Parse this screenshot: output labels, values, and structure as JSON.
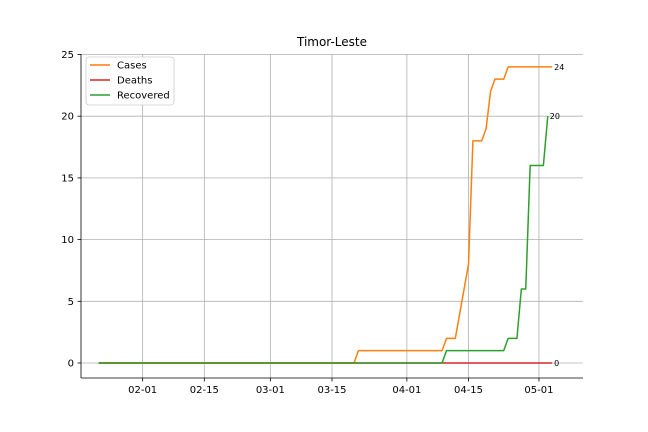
{
  "chart_data": {
    "type": "line",
    "title": "Timor-Leste",
    "xlabel": "",
    "ylabel": "",
    "ylim": [
      0,
      25
    ],
    "xlim": [
      "2020-01-18",
      "2020-05-11"
    ],
    "grid": true,
    "legend": "top-left",
    "x_ticks": [
      "02-01",
      "02-15",
      "03-01",
      "03-15",
      "04-01",
      "04-15",
      "05-01"
    ],
    "x_tick_dates": [
      "2020-02-01",
      "2020-02-15",
      "2020-03-01",
      "2020-03-15",
      "2020-04-01",
      "2020-04-15",
      "2020-05-01"
    ],
    "y_ticks": [
      0,
      5,
      10,
      15,
      20,
      25
    ],
    "series": [
      {
        "name": "Cases",
        "color": "#ff7f0e",
        "points": [
          [
            "2020-01-22",
            0
          ],
          [
            "2020-03-20",
            0
          ],
          [
            "2020-03-21",
            1
          ],
          [
            "2020-04-09",
            1
          ],
          [
            "2020-04-10",
            2
          ],
          [
            "2020-04-12",
            2
          ],
          [
            "2020-04-15",
            8
          ],
          [
            "2020-04-16",
            18
          ],
          [
            "2020-04-18",
            18
          ],
          [
            "2020-04-19",
            19
          ],
          [
            "2020-04-20",
            22
          ],
          [
            "2020-04-21",
            23
          ],
          [
            "2020-04-23",
            23
          ],
          [
            "2020-04-24",
            24
          ],
          [
            "2020-05-04",
            24
          ]
        ],
        "end_label": "24"
      },
      {
        "name": "Deaths",
        "color": "#d62728",
        "points": [
          [
            "2020-01-22",
            0
          ],
          [
            "2020-05-04",
            0
          ]
        ],
        "end_label": "0"
      },
      {
        "name": "Recovered",
        "color": "#2ca02c",
        "points": [
          [
            "2020-01-22",
            0
          ],
          [
            "2020-04-09",
            0
          ],
          [
            "2020-04-10",
            1
          ],
          [
            "2020-04-23",
            1
          ],
          [
            "2020-04-24",
            2
          ],
          [
            "2020-04-26",
            2
          ],
          [
            "2020-04-27",
            6
          ],
          [
            "2020-04-28",
            6
          ],
          [
            "2020-04-29",
            16
          ],
          [
            "2020-05-02",
            16
          ],
          [
            "2020-05-03",
            20
          ]
        ],
        "end_label": "20"
      }
    ]
  }
}
